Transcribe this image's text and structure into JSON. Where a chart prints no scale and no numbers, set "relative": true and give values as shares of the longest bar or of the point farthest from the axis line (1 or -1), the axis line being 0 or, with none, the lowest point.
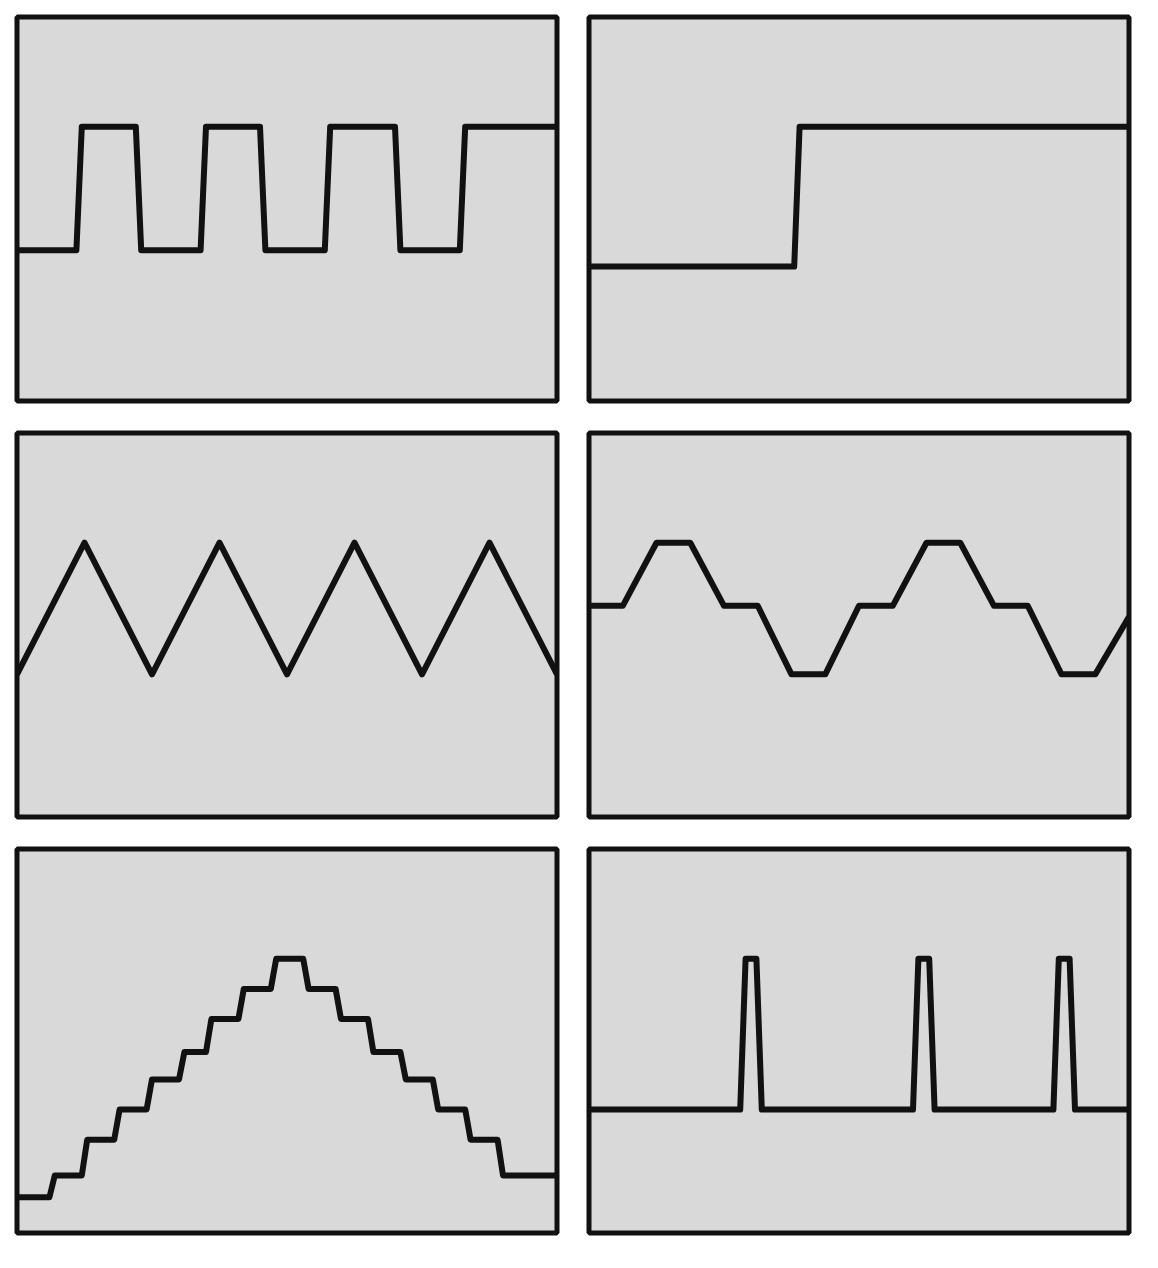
{
  "chart_data": [
    {
      "type": "line",
      "relative": true,
      "tick_labels": false,
      "categories": [
        null,
        null,
        null,
        null,
        null,
        null,
        null,
        null,
        null,
        null,
        null,
        null,
        null,
        null,
        null,
        null,
        null,
        null,
        null,
        null,
        null,
        null,
        null,
        null,
        null,
        null,
        null,
        null,
        null,
        null,
        null,
        null,
        null,
        null,
        null,
        null,
        null,
        null,
        null,
        null,
        null,
        null,
        null,
        null,
        null,
        null,
        null,
        null,
        null,
        null,
        null,
        null,
        null,
        null,
        null,
        null,
        null,
        null,
        null,
        null,
        null,
        null,
        null,
        null,
        null,
        null,
        null,
        null,
        null,
        null,
        null,
        null,
        null,
        null,
        null,
        null,
        null,
        null,
        null,
        null,
        null,
        null,
        null,
        null,
        null,
        null,
        null,
        null,
        null,
        null,
        null,
        null,
        null,
        null,
        null,
        null,
        null,
        null,
        null,
        null,
        null
      ],
      "series": [
        {
          "color": "#111111",
          "values": [
            0.55,
            0.55,
            0.55,
            0.55,
            0.55,
            0.55,
            0.55,
            0.55,
            0.55,
            0.55,
            0.55,
            0.55,
            1,
            1,
            1,
            1,
            1,
            1,
            1,
            1,
            1,
            1,
            1,
            0.55,
            0.55,
            0.55,
            0.55,
            0.55,
            0.55,
            0.55,
            0.55,
            0.55,
            0.55,
            0.55,
            0.55,
            1,
            1,
            1,
            1,
            1,
            1,
            1,
            1,
            1,
            1,
            1,
            0.55,
            0.55,
            0.55,
            0.55,
            0.55,
            0.55,
            0.55,
            0.55,
            0.55,
            0.55,
            0.55,
            0.55,
            1,
            1,
            1,
            1,
            1,
            1,
            1,
            1,
            1,
            1,
            1,
            1,
            1,
            0.55,
            0.55,
            0.55,
            0.55,
            0.55,
            0.55,
            0.55,
            0.55,
            0.55,
            0.55,
            0.55,
            0.55,
            1,
            1,
            1,
            1,
            1,
            1,
            1,
            1,
            1,
            1,
            1,
            1,
            1,
            1,
            1,
            1,
            1,
            1
          ]
        }
      ]
    },
    {
      "type": "line",
      "relative": true,
      "tick_labels": false,
      "categories": [
        null,
        null,
        null,
        null,
        null,
        null,
        null,
        null,
        null,
        null,
        null,
        null,
        null,
        null,
        null,
        null,
        null,
        null,
        null,
        null,
        null,
        null,
        null,
        null,
        null,
        null,
        null,
        null,
        null,
        null,
        null,
        null,
        null,
        null,
        null,
        null,
        null,
        null,
        null,
        null,
        null,
        null,
        null,
        null,
        null,
        null,
        null,
        null,
        null,
        null,
        null,
        null,
        null,
        null,
        null,
        null,
        null,
        null,
        null,
        null,
        null,
        null,
        null,
        null,
        null,
        null,
        null,
        null,
        null,
        null,
        null,
        null,
        null,
        null,
        null,
        null,
        null,
        null,
        null,
        null,
        null,
        null,
        null,
        null,
        null,
        null,
        null,
        null,
        null,
        null,
        null,
        null,
        null,
        null,
        null,
        null,
        null,
        null,
        null,
        null,
        null
      ],
      "series": [
        {
          "color": "#111111",
          "values": [
            0.49,
            0.49,
            0.49,
            0.49,
            0.49,
            0.49,
            0.49,
            0.49,
            0.49,
            0.49,
            0.49,
            0.49,
            0.49,
            0.49,
            0.49,
            0.49,
            0.49,
            0.49,
            0.49,
            0.49,
            0.49,
            0.49,
            0.49,
            0.49,
            0.49,
            0.49,
            0.49,
            0.49,
            0.49,
            0.49,
            0.49,
            0.49,
            0.49,
            0.49,
            0.49,
            0.49,
            0.49,
            0.49,
            0.49,
            1,
            1,
            1,
            1,
            1,
            1,
            1,
            1,
            1,
            1,
            1,
            1,
            1,
            1,
            1,
            1,
            1,
            1,
            1,
            1,
            1,
            1,
            1,
            1,
            1,
            1,
            1,
            1,
            1,
            1,
            1,
            1,
            1,
            1,
            1,
            1,
            1,
            1,
            1,
            1,
            1,
            1,
            1,
            1,
            1,
            1,
            1,
            1,
            1,
            1,
            1,
            1,
            1,
            1,
            1,
            1,
            1,
            1,
            1,
            1,
            1,
            1
          ]
        }
      ]
    },
    {
      "type": "line",
      "relative": true,
      "tick_labels": false,
      "categories": [
        null,
        null,
        null,
        null,
        null,
        null,
        null,
        null,
        null
      ],
      "series": [
        {
          "color": "#111111",
          "values": [
            0.52,
            1,
            0.52,
            1,
            0.52,
            1,
            0.52,
            1,
            0.52
          ]
        }
      ]
    },
    {
      "type": "line",
      "relative": true,
      "tick_labels": false,
      "categories": [
        null,
        null,
        null,
        null,
        null,
        null,
        null,
        null,
        null,
        null,
        null,
        null,
        null,
        null,
        null,
        null,
        null
      ],
      "series": [
        {
          "color": "#111111",
          "values": [
            0.77,
            0.77,
            1,
            1,
            0.77,
            0.77,
            0.52,
            0.52,
            0.77,
            0.77,
            1,
            1,
            0.77,
            0.77,
            0.52,
            0.52,
            0.73
          ]
        }
      ]
    },
    {
      "type": "line",
      "relative": true,
      "tick_labels": false,
      "categories": [
        null,
        null,
        null,
        null,
        null,
        null,
        null,
        null,
        null,
        null,
        null,
        null,
        null,
        null,
        null,
        null,
        null,
        null,
        null,
        null,
        null,
        null,
        null,
        null,
        null,
        null,
        null,
        null,
        null,
        null,
        null,
        null,
        null,
        null,
        null,
        null,
        null,
        null,
        null,
        null,
        null,
        null,
        null,
        null,
        null,
        null,
        null,
        null,
        null,
        null,
        null,
        null,
        null,
        null,
        null,
        null,
        null,
        null,
        null,
        null,
        null,
        null,
        null,
        null,
        null,
        null,
        null,
        null,
        null,
        null,
        null,
        null,
        null,
        null,
        null,
        null,
        null,
        null,
        null,
        null,
        null,
        null,
        null,
        null,
        null,
        null,
        null,
        null,
        null,
        null,
        null,
        null,
        null,
        null,
        null,
        null,
        null,
        null,
        null,
        null,
        null
      ],
      "series": [
        {
          "color": "#111111",
          "values": [
            0.13,
            0.13,
            0.13,
            0.13,
            0.13,
            0.13,
            0.13,
            0.21,
            0.21,
            0.21,
            0.21,
            0.21,
            0.21,
            0.34,
            0.34,
            0.34,
            0.34,
            0.34,
            0.34,
            0.45,
            0.45,
            0.45,
            0.45,
            0.45,
            0.45,
            0.56,
            0.56,
            0.56,
            0.56,
            0.56,
            0.56,
            0.66,
            0.66,
            0.66,
            0.66,
            0.66,
            0.78,
            0.78,
            0.78,
            0.78,
            0.78,
            0.78,
            0.89,
            0.89,
            0.89,
            0.89,
            0.89,
            0.89,
            1,
            1,
            1,
            1,
            1,
            1,
            0.89,
            0.89,
            0.89,
            0.89,
            0.89,
            0.89,
            0.78,
            0.78,
            0.78,
            0.78,
            0.78,
            0.78,
            0.66,
            0.66,
            0.66,
            0.66,
            0.66,
            0.66,
            0.56,
            0.56,
            0.56,
            0.56,
            0.56,
            0.56,
            0.45,
            0.45,
            0.45,
            0.45,
            0.45,
            0.45,
            0.34,
            0.34,
            0.34,
            0.34,
            0.34,
            0.34,
            0.21,
            0.21,
            0.21,
            0.21,
            0.21,
            0.21,
            0.21,
            0.21,
            0.21,
            0.21,
            0.21
          ]
        }
      ]
    },
    {
      "type": "line",
      "relative": true,
      "tick_labels": false,
      "categories": [
        null,
        null,
        null,
        null,
        null,
        null,
        null,
        null,
        null,
        null,
        null,
        null,
        null,
        null,
        null,
        null,
        null,
        null,
        null,
        null,
        null,
        null,
        null,
        null,
        null,
        null,
        null,
        null,
        null,
        null,
        null,
        null,
        null,
        null,
        null,
        null,
        null,
        null,
        null,
        null,
        null,
        null,
        null,
        null,
        null,
        null,
        null,
        null,
        null,
        null,
        null,
        null,
        null,
        null,
        null,
        null,
        null,
        null,
        null,
        null,
        null,
        null,
        null,
        null,
        null,
        null,
        null,
        null,
        null,
        null,
        null,
        null,
        null,
        null,
        null,
        null,
        null,
        null,
        null,
        null,
        null,
        null,
        null,
        null,
        null,
        null,
        null,
        null,
        null,
        null,
        null,
        null,
        null,
        null,
        null,
        null,
        null,
        null,
        null,
        null,
        null
      ],
      "series": [
        {
          "color": "#111111",
          "values": [
            0.45,
            0.45,
            0.45,
            0.45,
            0.45,
            0.45,
            0.45,
            0.45,
            0.45,
            0.45,
            0.45,
            0.45,
            0.45,
            0.45,
            0.45,
            0.45,
            0.45,
            0.45,
            0.45,
            0.45,
            0.45,
            0.45,
            0.45,
            0.45,
            0.45,
            0.45,
            0.45,
            0.45,
            0.45,
            1,
            1,
            1,
            0.45,
            0.45,
            0.45,
            0.45,
            0.45,
            0.45,
            0.45,
            0.45,
            0.45,
            0.45,
            0.45,
            0.45,
            0.45,
            0.45,
            0.45,
            0.45,
            0.45,
            0.45,
            0.45,
            0.45,
            0.45,
            0.45,
            0.45,
            0.45,
            0.45,
            0.45,
            0.45,
            0.45,
            0.45,
            1,
            1,
            1,
            0.45,
            0.45,
            0.45,
            0.45,
            0.45,
            0.45,
            0.45,
            0.45,
            0.45,
            0.45,
            0.45,
            0.45,
            0.45,
            0.45,
            0.45,
            0.45,
            0.45,
            0.45,
            0.45,
            0.45,
            0.45,
            0.45,
            0.45,
            1,
            1,
            1,
            0.45,
            0.45,
            0.45,
            0.45,
            0.45,
            0.45,
            0.45,
            0.45,
            0.45,
            0.45,
            0.45
          ]
        }
      ]
    }
  ]
}
